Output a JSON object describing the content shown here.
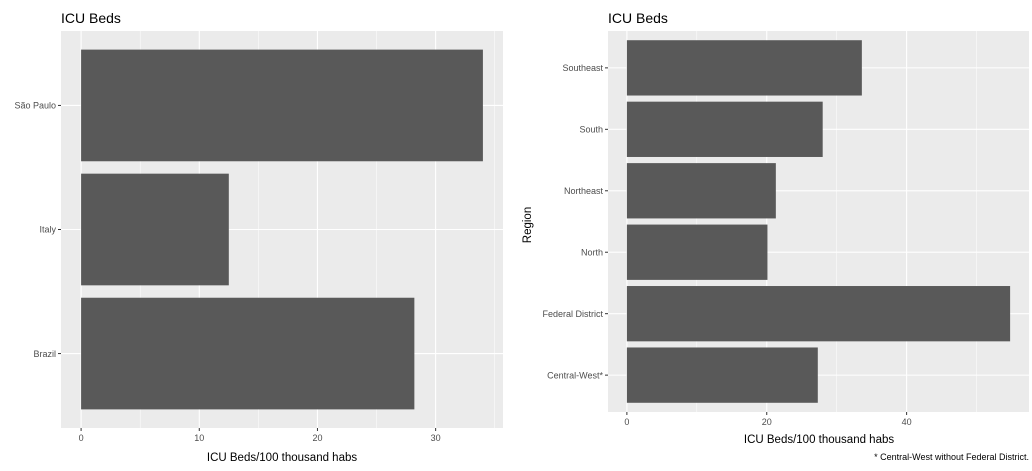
{
  "colors": {
    "panel_bg": "#ebebeb",
    "grid_major": "#ffffff",
    "bar_fill": "#595959",
    "tick_text": "#4d4d4d",
    "title_text": "#000000"
  },
  "chart_data": [
    {
      "type": "bar",
      "orientation": "horizontal",
      "title": "ICU Beds",
      "xlabel": "ICU Beds/100 thousand habs",
      "ylabel": "",
      "categories": [
        "Brazil",
        "Italy",
        "São Paulo"
      ],
      "values": [
        28.2,
        12.5,
        34.0
      ],
      "xlim": [
        -1.7,
        35.7
      ],
      "xticks": [
        0,
        10,
        20,
        30
      ],
      "xtick_labels": [
        "0",
        "10",
        "20",
        "30"
      ],
      "grid": true
    },
    {
      "type": "bar",
      "orientation": "horizontal",
      "title": "ICU Beds",
      "xlabel": "ICU Beds/100 thousand habs",
      "ylabel": "Region",
      "categories": [
        "Central-West*",
        "Federal District",
        "North",
        "Northeast",
        "South",
        "Southeast"
      ],
      "values": [
        27.3,
        54.8,
        20.1,
        21.3,
        28.0,
        33.6
      ],
      "xlim": [
        -2.7,
        57.5
      ],
      "xticks": [
        0,
        20,
        40
      ],
      "xtick_labels": [
        "0",
        "20",
        "40"
      ],
      "grid": true,
      "caption": "* Central-West without Federal District."
    }
  ]
}
